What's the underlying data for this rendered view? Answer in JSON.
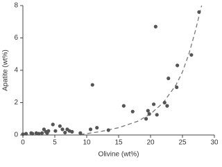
{
  "chart_data": {
    "type": "scatter",
    "xlabel": "Olivine (wt%)",
    "ylabel": "Apatite (wt%)",
    "xlim": [
      0,
      30
    ],
    "ylim": [
      0,
      8
    ],
    "xticks": [
      0,
      5,
      10,
      15,
      20,
      25,
      30
    ],
    "yticks": [
      0,
      2,
      4,
      6,
      8
    ],
    "series": [
      {
        "color": "#555555",
        "x": [
          0,
          0.5,
          1.3,
          1.5,
          2.1,
          2.5,
          3.0,
          3.3,
          3.6,
          3.8,
          4.0,
          4.7,
          5.1,
          5.8,
          6.2,
          6.6,
          6.95,
          7.3,
          7.7,
          9.0,
          10.6,
          10.9,
          11.6,
          13.4,
          15.8,
          17.2,
          19.3,
          19.6,
          19.8,
          20.5,
          21.0,
          20.8,
          22.2,
          22.6,
          22.8,
          24.1,
          24.2,
          26.4,
          27.6
        ],
        "y": [
          0.05,
          0.08,
          0.12,
          0.08,
          0.12,
          0.08,
          0.12,
          0.35,
          0.2,
          0.12,
          0.25,
          0.65,
          0.25,
          0.55,
          0.35,
          0.15,
          0.35,
          0.25,
          0.2,
          0.12,
          0.35,
          3.1,
          0.45,
          0.3,
          1.8,
          1.45,
          1.0,
          1.5,
          1.3,
          1.9,
          1.25,
          6.7,
          2.0,
          1.8,
          3.5,
          2.95,
          4.3,
          4.95,
          7.6
        ]
      }
    ],
    "fit_line": {
      "color": "#777777",
      "dashed": true,
      "x": [
        9,
        12,
        15,
        18,
        20,
        22,
        24,
        25,
        26,
        27,
        28
      ],
      "y": [
        0.03,
        0.2,
        0.45,
        0.85,
        1.3,
        2.0,
        3.1,
        3.9,
        5.0,
        6.4,
        8.0
      ]
    }
  }
}
